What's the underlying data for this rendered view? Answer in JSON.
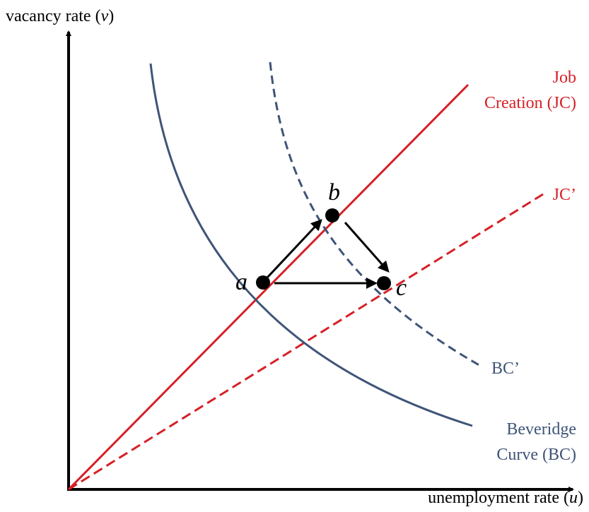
{
  "axes": {
    "y_label": {
      "before": "vacancy rate (",
      "var": "v",
      "after": ")"
    },
    "x_label": {
      "before": "unemployment rate (",
      "var": "u",
      "after": ")"
    }
  },
  "curves": {
    "jc": [
      "Job",
      "Creation (JC)"
    ],
    "jc_prime": "JC’",
    "bc_prime": "BC’",
    "bc": [
      "Beveridge",
      "Curve (BC)"
    ]
  },
  "points": {
    "a": "a",
    "b": "b",
    "c": "c"
  }
}
